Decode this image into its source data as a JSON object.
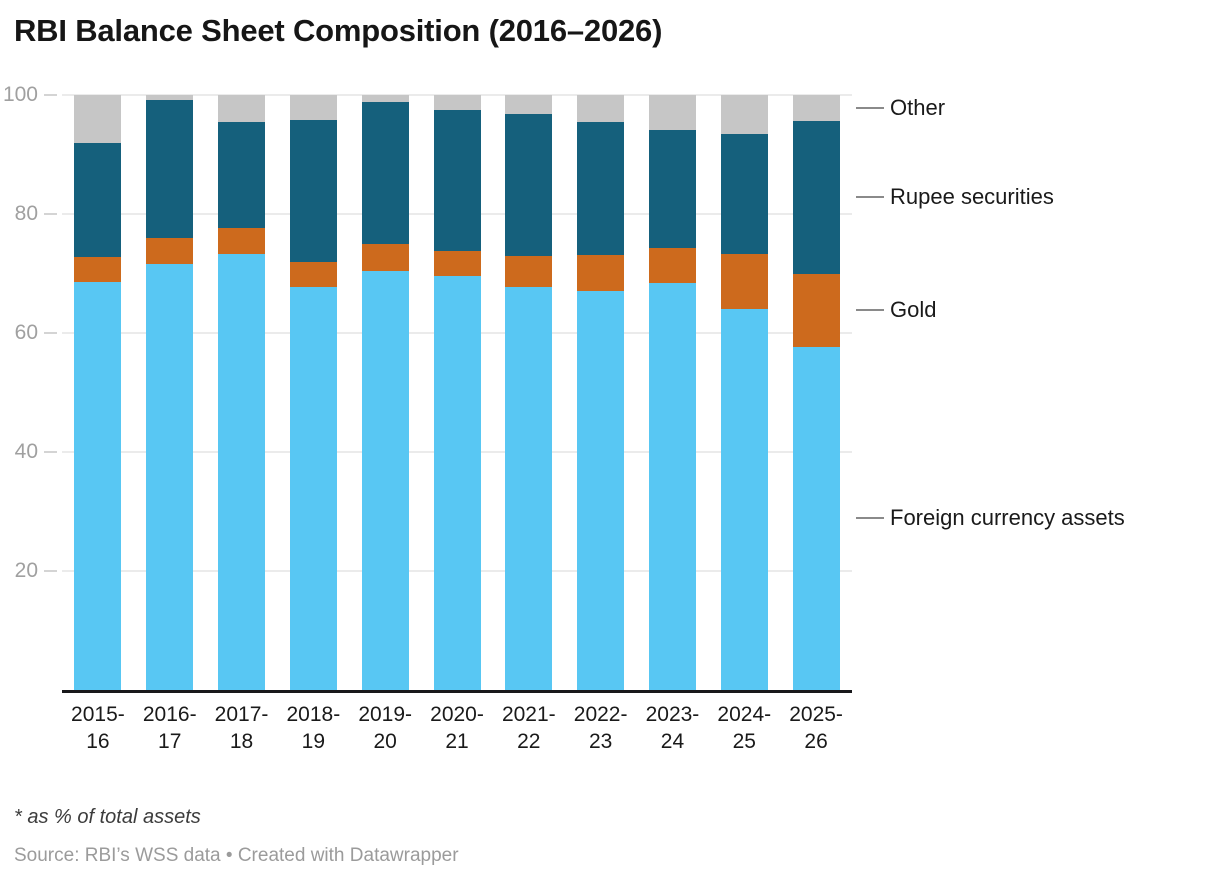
{
  "header": {
    "title": "RBI Balance Sheet Composition (2016–2026)"
  },
  "chart_data": {
    "type": "bar",
    "stacked": true,
    "title": "RBI Balance Sheet Composition (2016–2026)",
    "xlabel": "",
    "ylabel": "",
    "unit": "% of total assets",
    "ylim": [
      0,
      100
    ],
    "yticks": [
      20,
      40,
      60,
      80,
      100
    ],
    "grid": true,
    "legend_position": "right-direct-labels",
    "categories": [
      "2015-16",
      "2016-17",
      "2017-18",
      "2018-19",
      "2019-20",
      "2020-21",
      "2021-22",
      "2022-23",
      "2023-24",
      "2024-25",
      "2025-26"
    ],
    "series": [
      {
        "name": "Foreign currency assets",
        "color": "#58c7f3",
        "values": [
          68.6,
          71.6,
          73.3,
          67.7,
          70.4,
          69.5,
          67.8,
          67.1,
          68.4,
          64.1,
          57.7
        ]
      },
      {
        "name": "Gold",
        "color": "#cd6a1d",
        "values": [
          4.1,
          4.3,
          4.3,
          4.2,
          4.6,
          4.2,
          5.1,
          6.0,
          5.9,
          9.1,
          12.2
        ]
      },
      {
        "name": "Rupee securities",
        "color": "#15607c",
        "values": [
          19.2,
          23.2,
          17.8,
          23.9,
          23.8,
          23.8,
          23.9,
          22.4,
          19.9,
          20.2,
          25.8
        ]
      },
      {
        "name": "Other",
        "color": "#c6c6c6",
        "values": [
          8.1,
          0.9,
          4.6,
          4.2,
          1.2,
          2.5,
          3.2,
          4.5,
          5.8,
          6.6,
          4.3
        ]
      }
    ]
  },
  "footer": {
    "note": "* as % of total assets",
    "source": "Source: RBI’s WSS data • Created with Datawrapper"
  },
  "colors": {
    "foreign_currency_assets": "#58c7f3",
    "gold": "#cd6a1d",
    "rupee_securities": "#15607c",
    "other": "#c6c6c6",
    "gridline": "#ebebeb",
    "baseline": "#18181b",
    "axis_text": "#a0a0a0",
    "label_text": "#1a1a1a"
  }
}
